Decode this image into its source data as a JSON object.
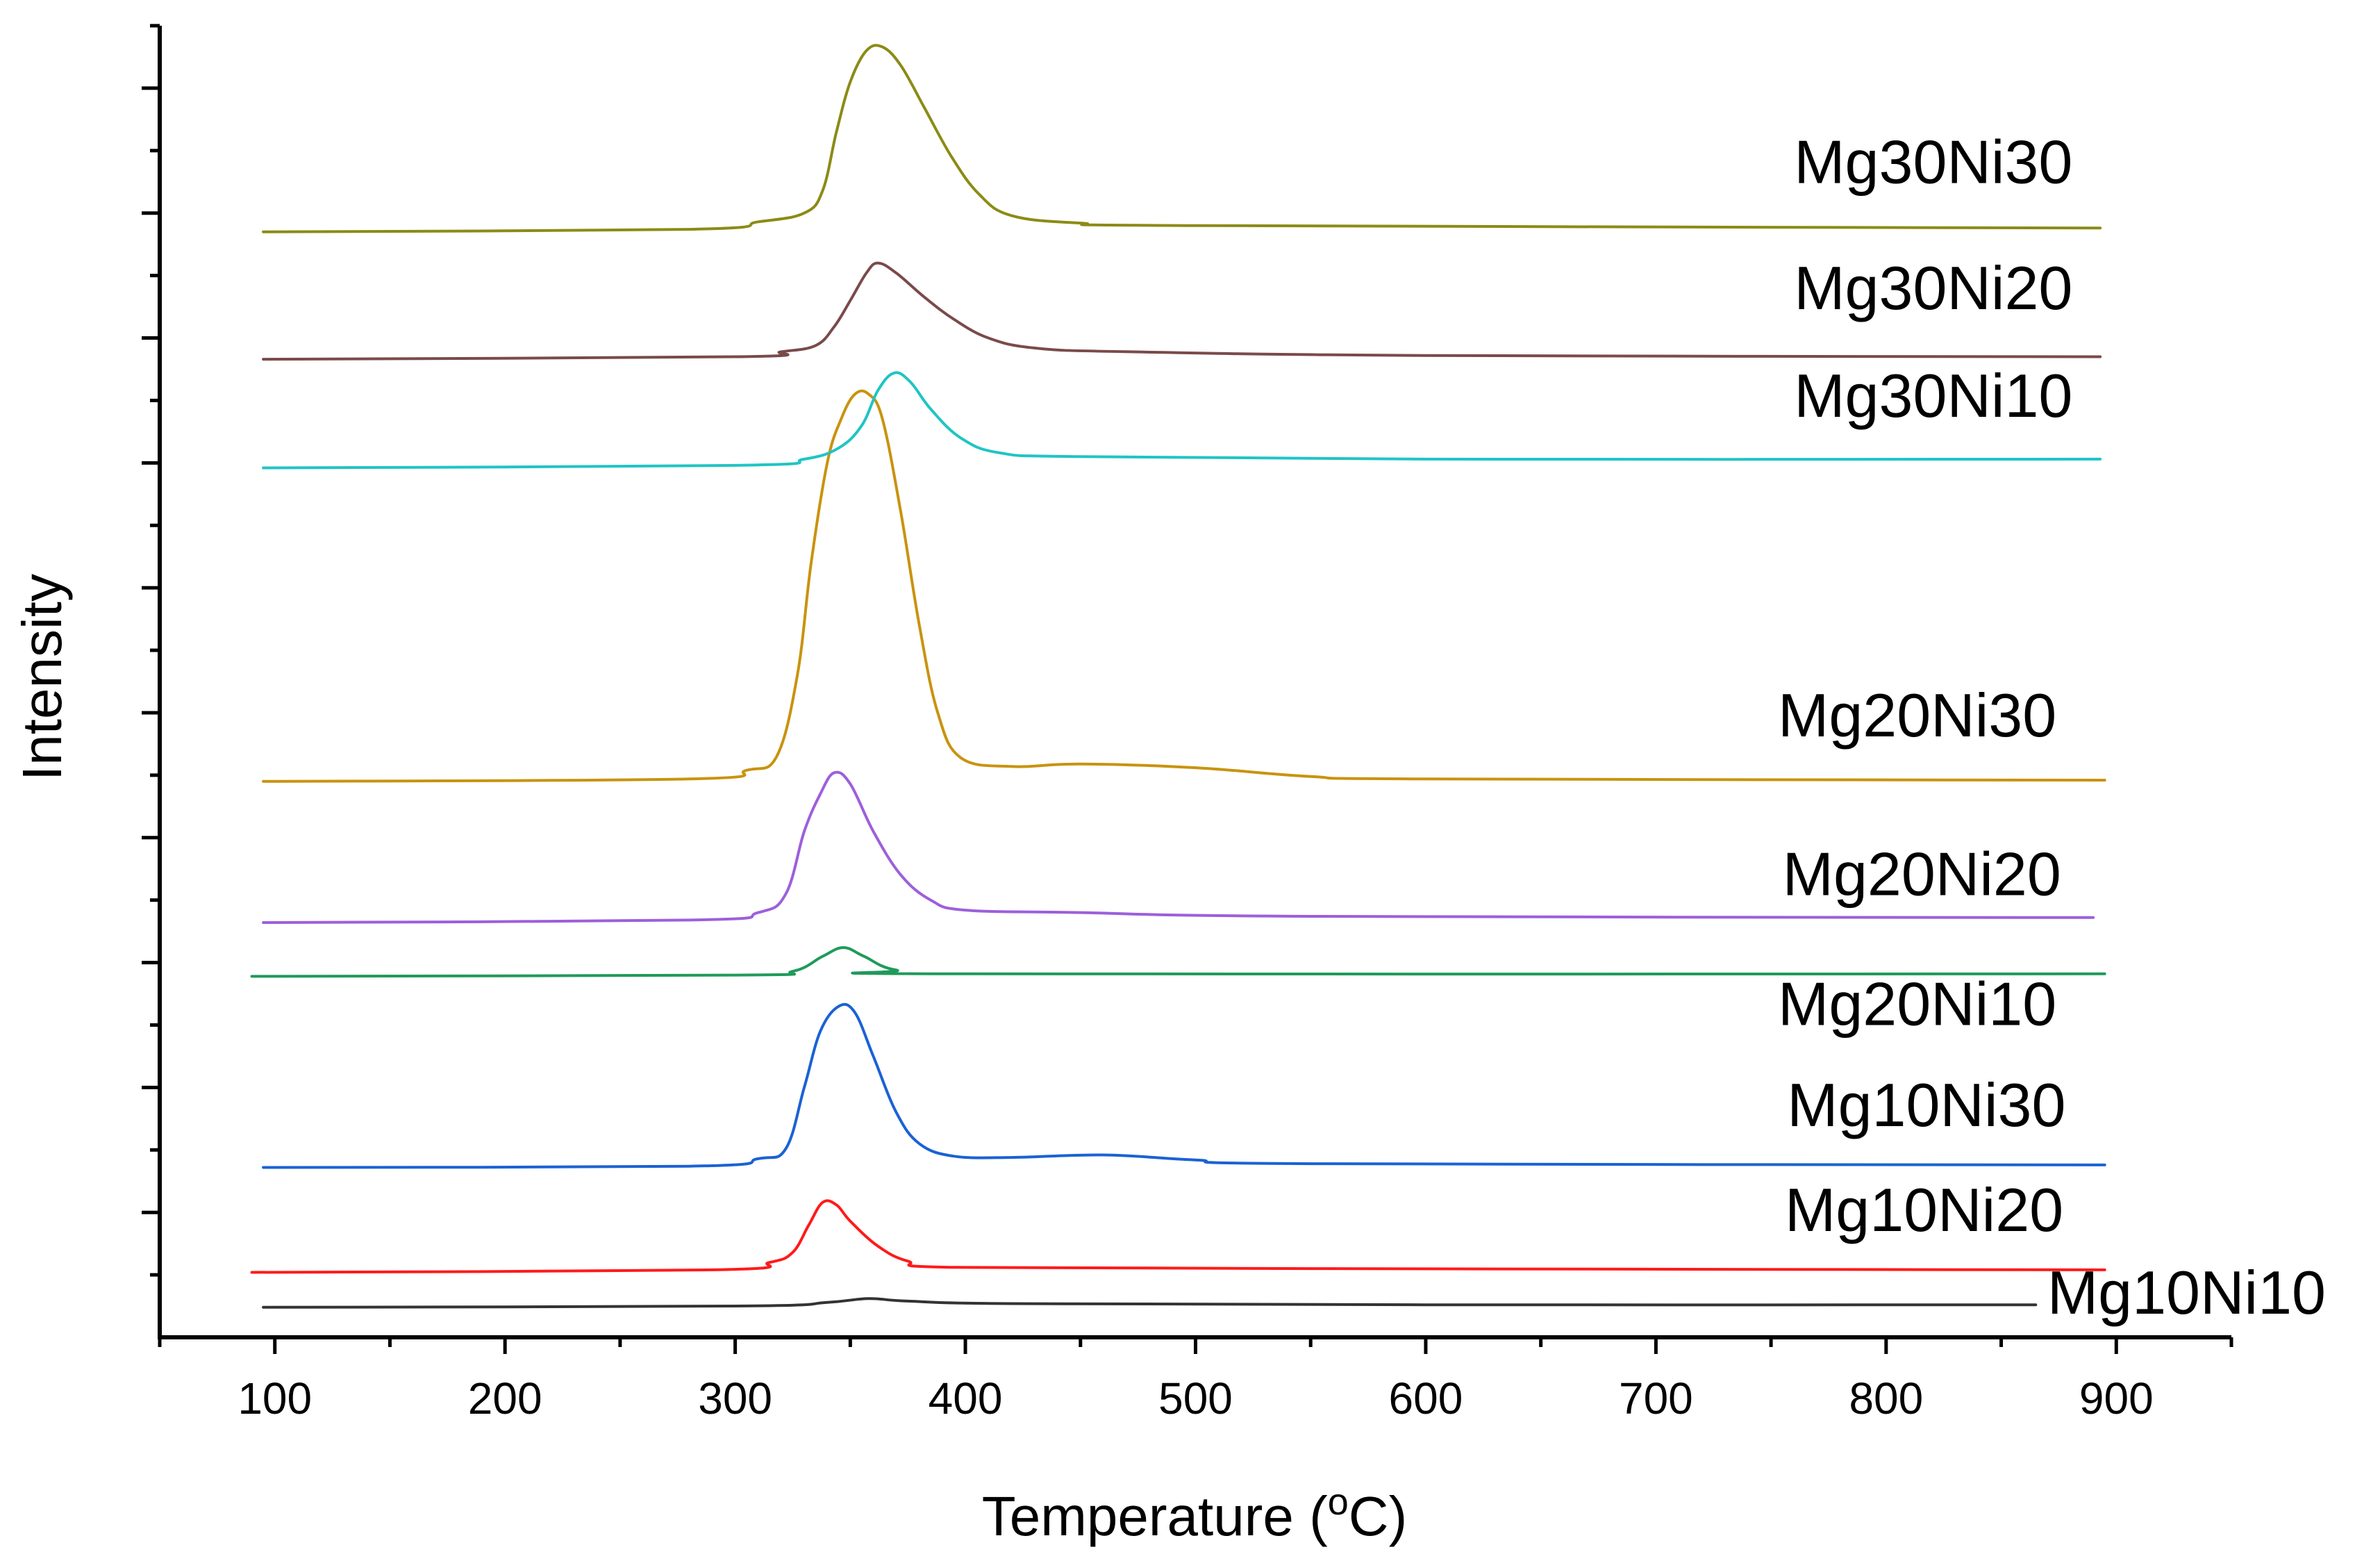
{
  "chart_data": {
    "type": "line",
    "title": "",
    "xlabel": "Temperature (oC)",
    "xlabel_main": "Temperature (",
    "xlabel_sup": "o",
    "xlabel_tail": "C)",
    "ylabel": "Intensity",
    "xlim": [
      50,
      950
    ],
    "ylim": [
      0,
      105
    ],
    "x_ticks": [
      100,
      200,
      300,
      400,
      500,
      600,
      700,
      800,
      900
    ],
    "x_tick_labels": [
      "100",
      "200",
      "300",
      "400",
      "500",
      "600",
      "700",
      "800",
      "900"
    ],
    "y_tick_labels_shown": false,
    "legend": "inline labels at right",
    "series": [
      {
        "name": "Mg10Ni10",
        "color": "#333333",
        "x_start": 95,
        "x_end": 865,
        "points": [
          [
            95,
            2.4
          ],
          [
            300,
            2.5
          ],
          [
            340,
            2.8
          ],
          [
            358,
            3.1
          ],
          [
            375,
            2.9
          ],
          [
            420,
            2.7
          ],
          [
            600,
            2.6
          ],
          [
            865,
            2.6
          ]
        ]
      },
      {
        "name": "Mg10Ni20",
        "color": "#ff1a1a",
        "x_start": 90,
        "x_end": 895,
        "points": [
          [
            90,
            5.2
          ],
          [
            290,
            5.4
          ],
          [
            315,
            6.0
          ],
          [
            325,
            6.8
          ],
          [
            332,
            9.0
          ],
          [
            338,
            10.8
          ],
          [
            344,
            10.6
          ],
          [
            350,
            9.3
          ],
          [
            362,
            7.3
          ],
          [
            375,
            6.1
          ],
          [
            395,
            5.6
          ],
          [
            550,
            5.5
          ],
          [
            895,
            5.4
          ]
        ]
      },
      {
        "name": "Mg10Ni30",
        "color": "#1a62d4",
        "x_start": 95,
        "x_end": 895,
        "points": [
          [
            95,
            13.6
          ],
          [
            280,
            13.7
          ],
          [
            310,
            14.3
          ],
          [
            322,
            15.1
          ],
          [
            330,
            20
          ],
          [
            337,
            24.5
          ],
          [
            345,
            26.5
          ],
          [
            352,
            26
          ],
          [
            360,
            22.5
          ],
          [
            370,
            18
          ],
          [
            380,
            15.5
          ],
          [
            395,
            14.5
          ],
          [
            420,
            14.4
          ],
          [
            460,
            14.6
          ],
          [
            500,
            14.2
          ],
          [
            550,
            13.9
          ],
          [
            895,
            13.8
          ]
        ]
      },
      {
        "name": "Mg20Ni10",
        "color": "#1f9a5a",
        "x_start": 90,
        "x_end": 895,
        "points": [
          [
            90,
            28.9
          ],
          [
            300,
            29.0
          ],
          [
            325,
            29.3
          ],
          [
            338,
            30.5
          ],
          [
            347,
            31.2
          ],
          [
            356,
            30.5
          ],
          [
            370,
            29.4
          ],
          [
            400,
            29.1
          ],
          [
            895,
            29.1
          ]
        ]
      },
      {
        "name": "Mg20Ni20",
        "color": "#9d5fdb",
        "x_start": 95,
        "x_end": 890,
        "points": [
          [
            95,
            33.2
          ],
          [
            280,
            33.4
          ],
          [
            310,
            34.0
          ],
          [
            322,
            35.5
          ],
          [
            330,
            40.5
          ],
          [
            337,
            43.5
          ],
          [
            343,
            45.2
          ],
          [
            350,
            44.3
          ],
          [
            360,
            40.5
          ],
          [
            372,
            37
          ],
          [
            385,
            35
          ],
          [
            400,
            34.2
          ],
          [
            450,
            34.0
          ],
          [
            550,
            33.7
          ],
          [
            890,
            33.6
          ]
        ]
      },
      {
        "name": "Mg20Ni30",
        "color": "#c9930f",
        "x_start": 95,
        "x_end": 895,
        "points": [
          [
            95,
            44.5
          ],
          [
            280,
            44.7
          ],
          [
            305,
            45.4
          ],
          [
            318,
            46.5
          ],
          [
            327,
            53
          ],
          [
            333,
            62
          ],
          [
            340,
            70
          ],
          [
            346,
            73.5
          ],
          [
            352,
            75.5
          ],
          [
            358,
            75.5
          ],
          [
            364,
            73.5
          ],
          [
            372,
            66
          ],
          [
            380,
            57
          ],
          [
            388,
            50
          ],
          [
            398,
            46.4
          ],
          [
            420,
            45.7
          ],
          [
            450,
            45.9
          ],
          [
            500,
            45.6
          ],
          [
            550,
            44.9
          ],
          [
            600,
            44.7
          ],
          [
            895,
            44.6
          ]
        ]
      },
      {
        "name": "Mg30Ni10",
        "color": "#20c4c4",
        "x_start": 95,
        "x_end": 893,
        "points": [
          [
            95,
            69.6
          ],
          [
            300,
            69.8
          ],
          [
            330,
            70.3
          ],
          [
            345,
            71.2
          ],
          [
            355,
            73
          ],
          [
            362,
            75.8
          ],
          [
            369,
            77.2
          ],
          [
            376,
            76.5
          ],
          [
            385,
            74.3
          ],
          [
            398,
            72
          ],
          [
            415,
            70.8
          ],
          [
            450,
            70.5
          ],
          [
            600,
            70.3
          ],
          [
            893,
            70.3
          ]
        ]
      },
      {
        "name": "Mg30Ni20",
        "color": "#7a4a4a",
        "x_start": 95,
        "x_end": 893,
        "points": [
          [
            95,
            78.3
          ],
          [
            300,
            78.5
          ],
          [
            320,
            78.9
          ],
          [
            335,
            79.4
          ],
          [
            343,
            80.9
          ],
          [
            350,
            83
          ],
          [
            357,
            85.2
          ],
          [
            362,
            86
          ],
          [
            370,
            85.2
          ],
          [
            382,
            83.3
          ],
          [
            395,
            81.5
          ],
          [
            410,
            80.0
          ],
          [
            430,
            79.2
          ],
          [
            470,
            78.9
          ],
          [
            600,
            78.6
          ],
          [
            893,
            78.5
          ]
        ]
      },
      {
        "name": "Mg30Ni30",
        "color": "#8b8b16",
        "x_start": 95,
        "x_end": 893,
        "points": [
          [
            95,
            88.5
          ],
          [
            280,
            88.7
          ],
          [
            310,
            89.3
          ],
          [
            330,
            90.0
          ],
          [
            338,
            91.8
          ],
          [
            344,
            96.5
          ],
          [
            350,
            100.5
          ],
          [
            357,
            103
          ],
          [
            364,
            103.3
          ],
          [
            372,
            101.8
          ],
          [
            382,
            98.5
          ],
          [
            394,
            94.5
          ],
          [
            406,
            91.5
          ],
          [
            420,
            89.8
          ],
          [
            450,
            89.2
          ],
          [
            500,
            89.0
          ],
          [
            893,
            88.8
          ]
        ]
      }
    ],
    "labels": [
      {
        "text": "Mg30Ni30",
        "x": 760,
        "y": 92.4
      },
      {
        "text": "Mg30Ni20",
        "x": 760,
        "y": 82.3
      },
      {
        "text": "Mg30Ni10",
        "x": 760,
        "y": 73.7
      },
      {
        "text": "Mg20Ni30",
        "x": 753,
        "y": 48.1
      },
      {
        "text": "Mg20Ni20",
        "x": 755,
        "y": 35.4
      },
      {
        "text": "Mg20Ni10",
        "x": 753,
        "y": 25.0
      },
      {
        "text": "Mg10Ni30",
        "x": 757,
        "y": 16.9
      },
      {
        "text": "Mg10Ni20",
        "x": 756,
        "y": 8.5
      },
      {
        "text": "Mg10Ni10",
        "x": 870,
        "y": 1.9
      }
    ]
  }
}
